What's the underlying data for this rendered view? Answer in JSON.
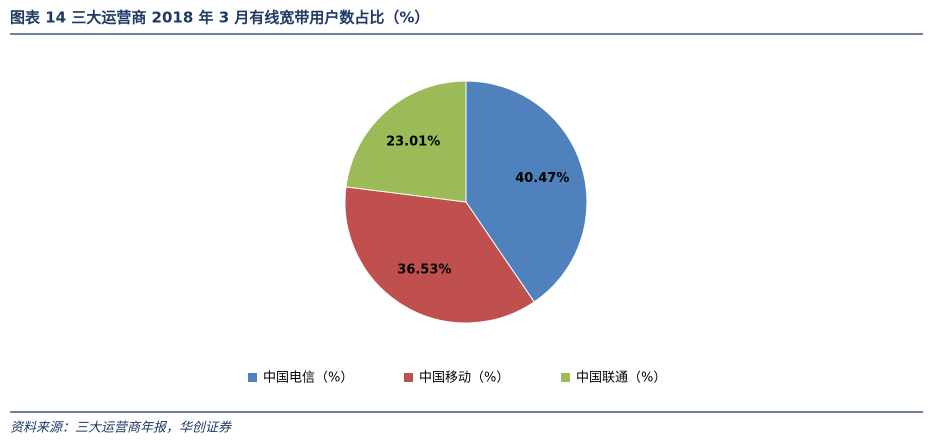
{
  "chart_data": {
    "type": "pie",
    "title": "图表 14 三大运营商 2018 年 3 月有线宽带用户数占比（%）",
    "categories": [
      "中国电信（%）",
      "中国移动（%）",
      "中国联通（%）"
    ],
    "values": [
      40.47,
      36.53,
      23.01
    ],
    "value_labels": [
      "40.47%",
      "36.53%",
      "23.01%"
    ],
    "colors": [
      "#4f81bd",
      "#c0504d",
      "#9bbb59"
    ],
    "legend": "bottom",
    "source": "资料来源：三大运营商年报，华创证券"
  }
}
